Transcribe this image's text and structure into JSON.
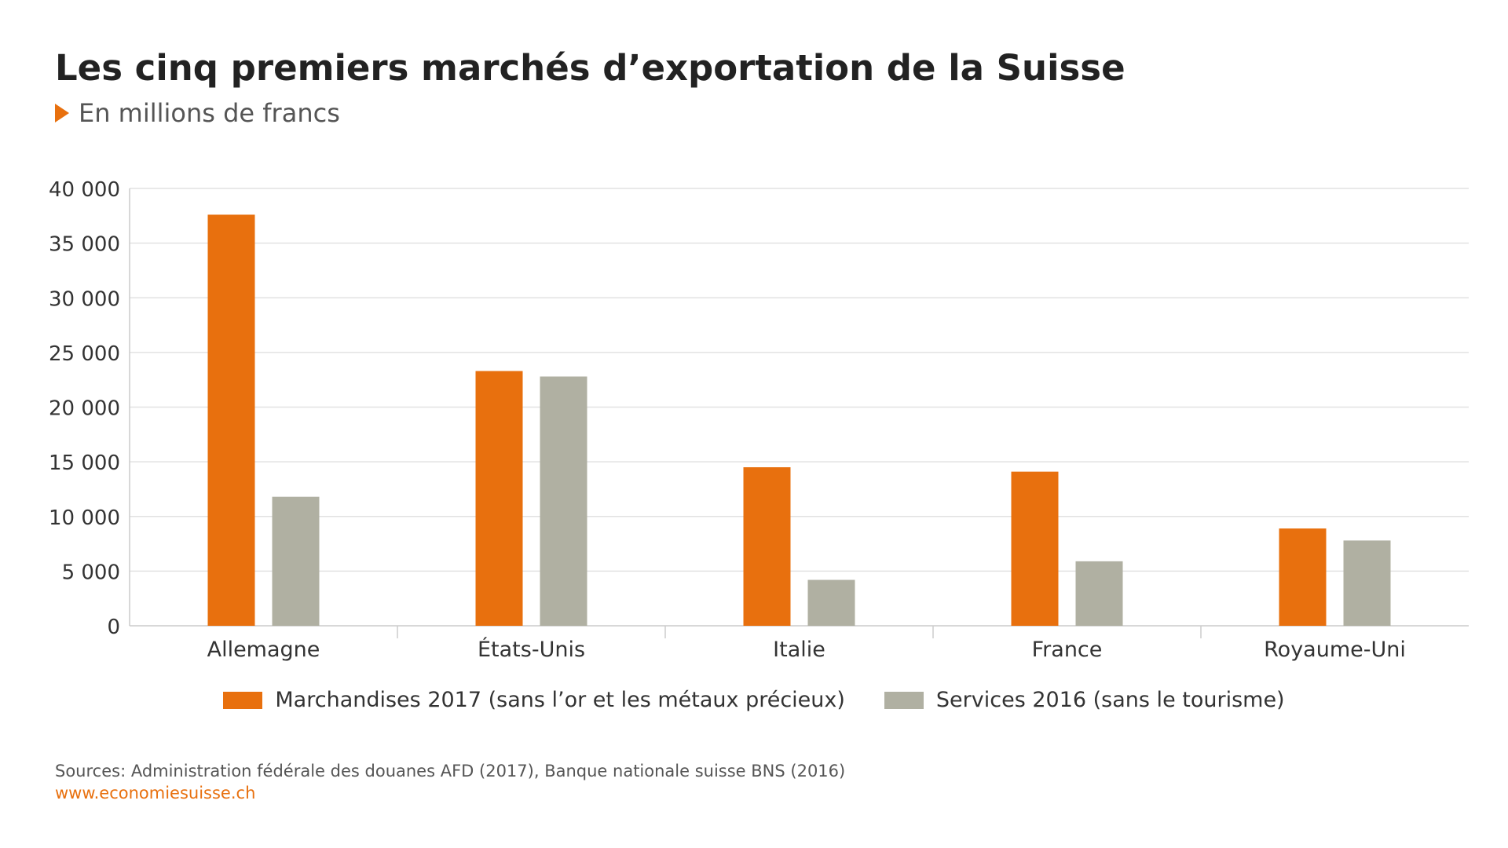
{
  "title": "Les cinq premiers marchés d’exportation de la Suisse",
  "subtitle": "En millions de francs",
  "colors": {
    "accent": "#e8700e",
    "merchandise": "#e8700e",
    "services": "#b0b0a2",
    "grid": "#e2e2e2",
    "axis": "#cccccc"
  },
  "chart_data": {
    "type": "bar",
    "title": "Les cinq premiers marchés d’exportation de la Suisse",
    "subtitle": "En millions de francs",
    "xlabel": "",
    "ylabel": "",
    "categories": [
      "Allemagne",
      "États-Unis",
      "Italie",
      "France",
      "Royaume-Uni"
    ],
    "series": [
      {
        "name": "Marchandises 2017 (sans l’or et les métaux précieux)",
        "values": [
          37600,
          23300,
          14500,
          14100,
          8900
        ]
      },
      {
        "name": "Services 2016 (sans le tourisme)",
        "values": [
          11800,
          22800,
          4200,
          5900,
          7800
        ]
      }
    ],
    "ylim": [
      0,
      40000
    ],
    "yticks": [
      0,
      5000,
      10000,
      15000,
      20000,
      25000,
      30000,
      35000,
      40000
    ],
    "ytick_labels": [
      "0",
      "5 000",
      "10 000",
      "15 000",
      "20 000",
      "25 000",
      "30 000",
      "35 000",
      "40 000"
    ],
    "grid": true,
    "legend_position": "bottom-center"
  },
  "footer": {
    "sources": "Sources: Administration fédérale des douanes AFD (2017), Banque nationale suisse BNS (2016)",
    "website": "www.economiesuisse.ch"
  }
}
